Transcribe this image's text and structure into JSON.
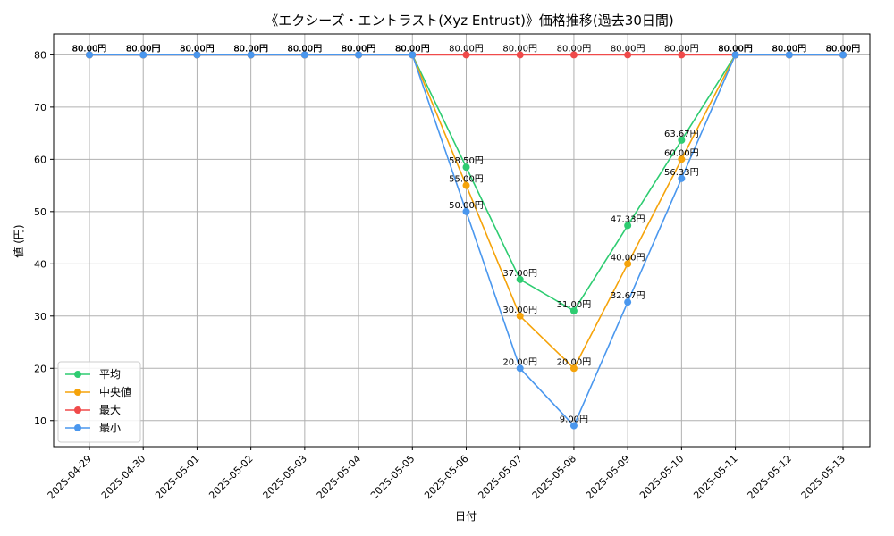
{
  "chart_data": {
    "type": "line",
    "title": "《エクシーズ・エントラスト(Xyz Entrust)》価格推移(過去30日間)",
    "xlabel": "日付",
    "ylabel": "値 (円)",
    "ylim": [
      5,
      84
    ],
    "yticks": [
      10,
      20,
      30,
      40,
      50,
      60,
      70,
      80
    ],
    "grid": true,
    "legend_position": "lower-left",
    "value_suffix": "円",
    "categories": [
      "2025-04-29",
      "2025-04-30",
      "2025-05-01",
      "2025-05-02",
      "2025-05-03",
      "2025-05-04",
      "2025-05-05",
      "2025-05-06",
      "2025-05-07",
      "2025-05-08",
      "2025-05-09",
      "2025-05-10",
      "2025-05-11",
      "2025-05-12",
      "2025-05-13"
    ],
    "series": [
      {
        "name": "平均",
        "color": "#2ecc71",
        "values": [
          80,
          80,
          80,
          80,
          80,
          80,
          80,
          58.5,
          37,
          31,
          47.33,
          63.67,
          80,
          80,
          80
        ]
      },
      {
        "name": "中央値",
        "color": "#f5a30a",
        "values": [
          80,
          80,
          80,
          80,
          80,
          80,
          80,
          55,
          30,
          20,
          40,
          60,
          80,
          80,
          80
        ]
      },
      {
        "name": "最大",
        "color": "#f04a4a",
        "values": [
          80,
          80,
          80,
          80,
          80,
          80,
          80,
          80,
          80,
          80,
          80,
          80,
          80,
          80,
          80
        ]
      },
      {
        "name": "最小",
        "color": "#4a97ee",
        "values": [
          80,
          80,
          80,
          80,
          80,
          80,
          80,
          50,
          20,
          9,
          32.67,
          56.33,
          80,
          80,
          80
        ]
      }
    ]
  }
}
